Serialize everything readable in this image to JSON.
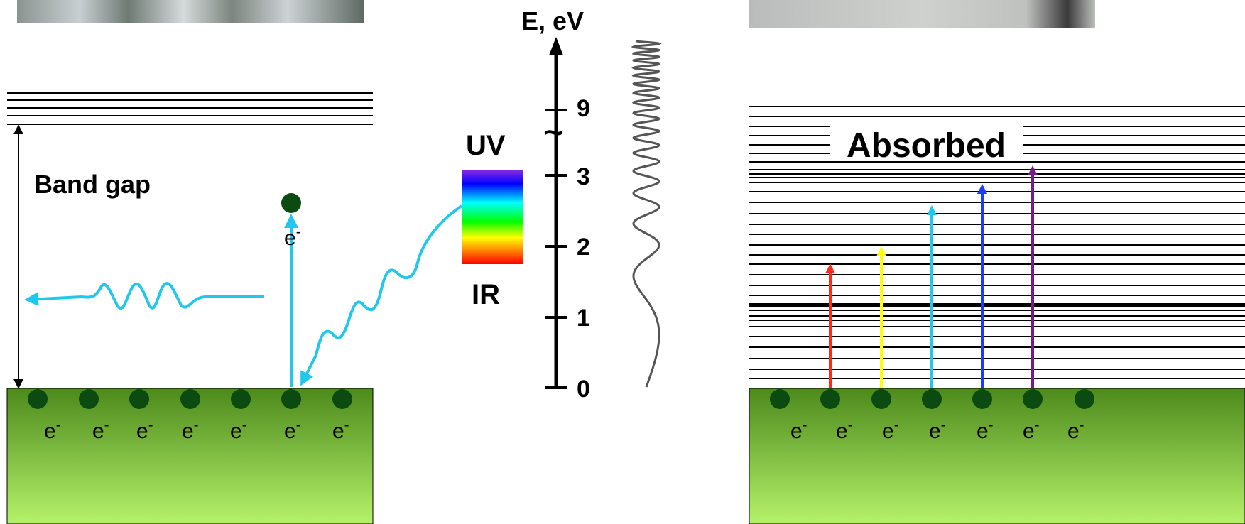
{
  "left_panel": {
    "band_gap_label": "Band gap",
    "excited_electron_label": "e",
    "electron_label": "e",
    "electron_superscript": "-",
    "valence_electron_count": 7,
    "photon_color": "#22c7ee",
    "electron_color": "#0b4a10",
    "band_gradient": [
      "#4d8a1c",
      "#b5f26a"
    ]
  },
  "spectrum": {
    "uv_label": "UV",
    "ir_label": "IR",
    "colors": [
      "#8a2be2",
      "#0000ff",
      "#00ffff",
      "#00ff00",
      "#ffff00",
      "#ff8000",
      "#ff0000"
    ]
  },
  "energy_axis": {
    "label": "E, eV",
    "break_symbol": "~",
    "ticks": [
      "0",
      "1",
      "2",
      "3",
      "9"
    ]
  },
  "right_panel": {
    "absorbed_label": "Absorbed",
    "electron_label": "e",
    "electron_superscript": "-",
    "valence_electron_count": 7,
    "arrow_colors": [
      "#ff2a1a",
      "#ffff00",
      "#22c7ee",
      "#1a3cff",
      "#7a1a8a"
    ]
  }
}
